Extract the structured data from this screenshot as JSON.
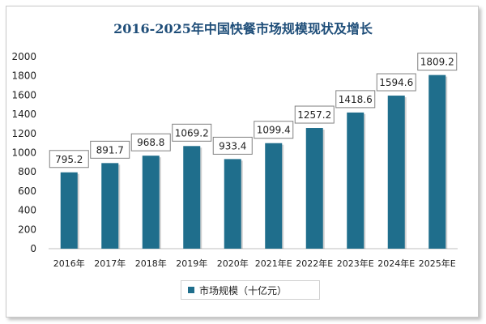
{
  "chart_data": {
    "type": "bar",
    "title": "2016-2025年中国快餐市场规模现状及增长",
    "categories": [
      "2016年",
      "2017年",
      "2018年",
      "2019年",
      "2020年",
      "2021年E",
      "2022年E",
      "2023年E",
      "2024年E",
      "2025年E"
    ],
    "series": [
      {
        "name": "市场规模（十亿元）",
        "values": [
          795.2,
          891.7,
          968.8,
          1069.2,
          933.4,
          1099.4,
          1257.2,
          1418.6,
          1594.6,
          1809.2
        ]
      }
    ],
    "data_labels": [
      "795.2",
      "891.7",
      "968.8",
      "1069.2",
      "933.4",
      "1099.4",
      "1257.2",
      "1418.6",
      "1594.6",
      "1809.2"
    ],
    "ylim": [
      0,
      2000
    ],
    "yticks": [
      0,
      200,
      400,
      600,
      800,
      1000,
      1200,
      1400,
      1600,
      1800,
      2000
    ],
    "ytick_labels": [
      "0",
      "200",
      "400",
      "600",
      "800",
      "1000",
      "1200",
      "1400",
      "1600",
      "1800",
      "2000"
    ],
    "grid": false,
    "legend_position": "bottom",
    "colors": {
      "bar": "#1f6e8c",
      "title": "#1f4e79"
    }
  }
}
